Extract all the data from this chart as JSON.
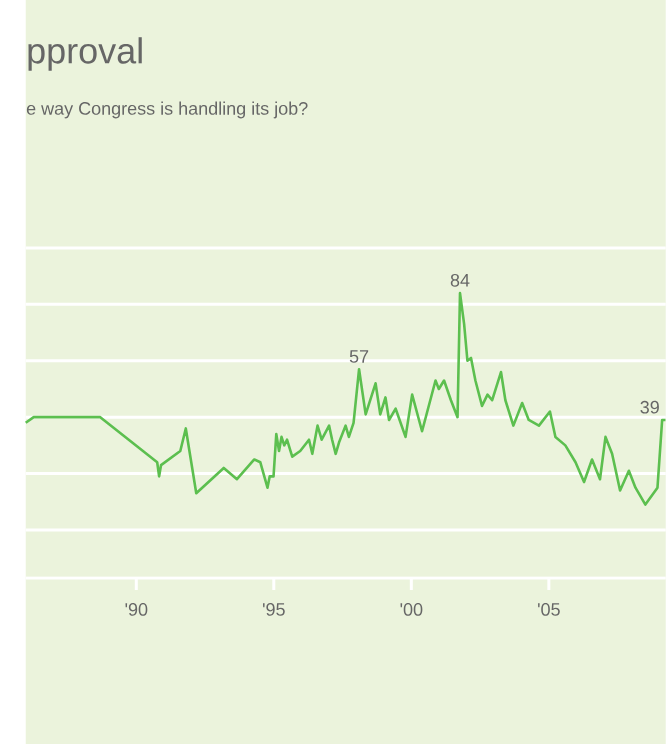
{
  "chart_data": {
    "type": "line",
    "title": "pproval",
    "subtitle": "e way Congress is handling its job?",
    "x": [
      1985.98,
      1986.27,
      1988.69,
      1990.76,
      1990.83,
      1990.9,
      1991.6,
      1991.8,
      1992.18,
      1993.18,
      1993.66,
      1994.29,
      1994.51,
      1994.77,
      1994.85,
      1994.99,
      1995.09,
      1995.19,
      1995.28,
      1995.38,
      1995.48,
      1995.67,
      1995.96,
      1996.28,
      1996.4,
      1996.59,
      1996.74,
      1997.01,
      1997.12,
      1997.25,
      1997.37,
      1997.61,
      1997.73,
      1997.9,
      1998.1,
      1998.34,
      1998.7,
      1998.87,
      1999.06,
      1999.19,
      1999.43,
      1999.79,
      2000.03,
      2000.39,
      2000.88,
      2001.0,
      2001.19,
      2001.44,
      2001.68,
      2001.77,
      2001.92,
      2002.04,
      2002.17,
      2002.33,
      2002.57,
      2002.77,
      2002.94,
      2003.26,
      2003.42,
      2003.71,
      2004.03,
      2004.27,
      2004.64,
      2005.04,
      2005.24,
      2005.6,
      2005.97,
      2006.28,
      2006.57,
      2006.86,
      2007.06,
      2007.3,
      2007.59,
      2007.91,
      2008.15,
      2008.51,
      2008.95,
      2009.12,
      2009.24
    ],
    "series": [
      {
        "color": "#5cbf4f",
        "values": [
          38,
          40,
          40,
          24,
          19,
          23,
          28,
          36,
          13,
          22,
          18,
          25,
          24,
          15,
          19,
          19,
          34,
          28,
          33,
          30,
          32,
          26,
          28,
          32,
          27,
          37,
          32,
          37,
          32,
          27,
          31,
          37,
          33,
          38,
          57,
          41,
          52,
          41,
          47,
          39,
          43,
          33,
          48,
          35,
          53,
          50,
          53,
          46,
          40,
          84,
          73,
          60,
          61,
          53,
          44,
          48,
          46,
          56,
          46,
          37,
          45,
          39,
          37,
          42,
          33,
          30,
          24,
          17,
          25,
          18,
          33,
          27,
          14,
          21,
          15,
          9,
          15,
          39,
          39
        ],
        "value_labels": [
          null,
          null,
          null,
          null,
          null,
          null,
          null,
          null,
          null,
          null,
          null,
          null,
          null,
          null,
          null,
          null,
          null,
          null,
          null,
          null,
          null,
          null,
          null,
          null,
          null,
          null,
          null,
          null,
          null,
          null,
          null,
          null,
          null,
          null,
          "57",
          null,
          null,
          null,
          null,
          null,
          null,
          null,
          null,
          null,
          null,
          null,
          null,
          null,
          null,
          "84",
          null,
          null,
          null,
          null,
          null,
          null,
          null,
          null,
          null,
          null,
          null,
          null,
          null,
          null,
          null,
          null,
          null,
          null,
          null,
          null,
          null,
          null,
          null,
          null,
          null,
          null,
          null,
          "39",
          null
        ]
      }
    ],
    "xlim": [
      1985.98,
      2009.25
    ],
    "xticks": [
      {
        "value": 1990,
        "label": "'90"
      },
      {
        "value": 1995,
        "label": "'95"
      },
      {
        "value": 2000,
        "label": "'00"
      },
      {
        "value": 2005,
        "label": "'05"
      }
    ],
    "tick_labels": "x",
    "grid": "y"
  }
}
